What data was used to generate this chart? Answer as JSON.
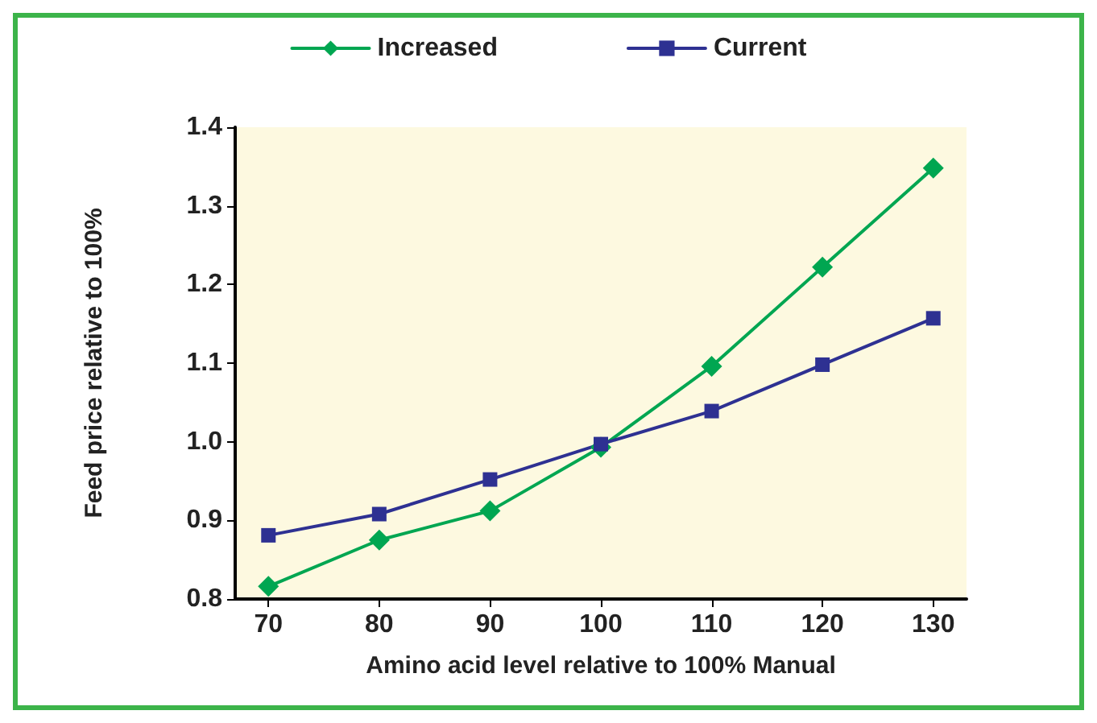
{
  "chart_data": {
    "type": "line",
    "xlabel": "Amino acid level relative to 100% Manual",
    "ylabel": "Feed price relative to 100%",
    "x": [
      70,
      80,
      90,
      100,
      110,
      120,
      130
    ],
    "series": [
      {
        "name": "Increased",
        "color": "#00a651",
        "marker": "diamond",
        "values": [
          0.816,
          0.875,
          0.912,
          0.993,
          1.096,
          1.222,
          1.348
        ]
      },
      {
        "name": "Current",
        "color": "#2e3192",
        "marker": "square",
        "values": [
          0.881,
          0.908,
          0.952,
          0.997,
          1.039,
          1.098,
          1.157
        ]
      }
    ],
    "xlim": [
      67,
      133
    ],
    "xticks": [
      70,
      80,
      90,
      100,
      110,
      120,
      130
    ],
    "ylim": [
      0.8,
      1.4
    ],
    "yticks": [
      0.8,
      0.9,
      {
        "value": 1,
        "label": "1.0"
      },
      1.1,
      1.2,
      1.3,
      1.4
    ],
    "legend": "top",
    "grid": false,
    "line_style": "solid"
  }
}
